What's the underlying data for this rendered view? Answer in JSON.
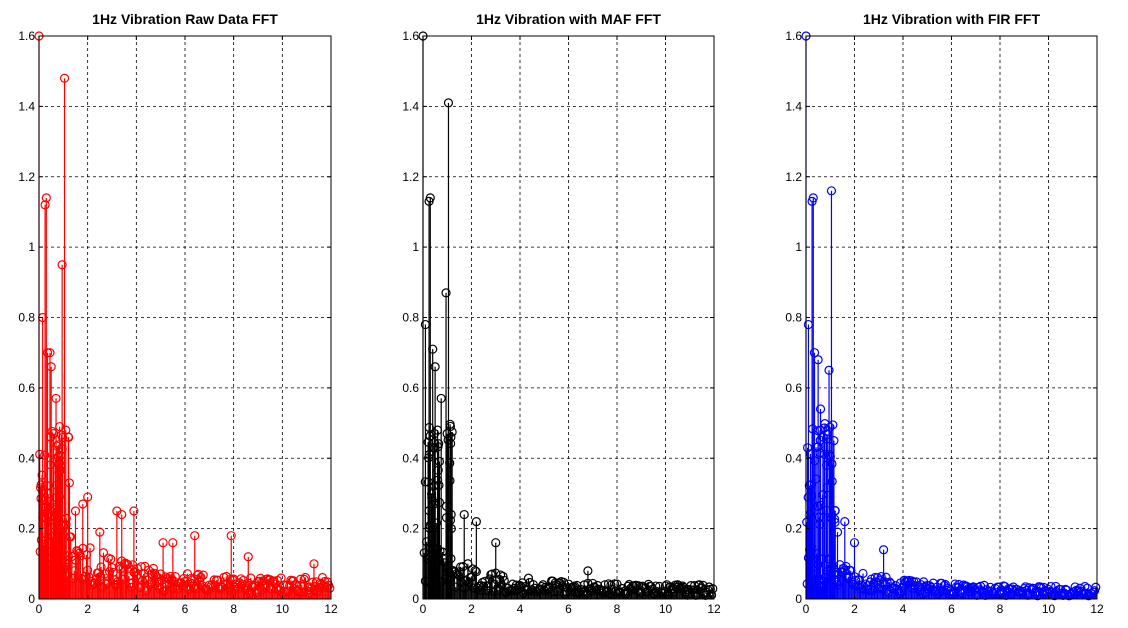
{
  "chart_data": [
    {
      "type": "stem",
      "title": "1Hz Vibration Raw Data FFT",
      "color": "#ff0000",
      "xlim": [
        0,
        12
      ],
      "ylim": [
        0,
        1.6
      ],
      "xticks": [
        0,
        2,
        4,
        6,
        8,
        10,
        12
      ],
      "yticks": [
        0,
        0.2,
        0.4,
        0.6,
        0.8,
        1,
        1.2,
        1.4,
        1.6
      ],
      "xtick_labels": [
        "0",
        "2",
        "4",
        "6",
        "8",
        "10",
        "12"
      ],
      "ytick_labels": [
        "0",
        "0.2",
        "0.4",
        "0.6",
        "0.8",
        "1",
        "1.2",
        "1.4",
        "1.6"
      ],
      "grid": true,
      "peaks": [
        {
          "x": 0.0,
          "y": 1.6
        },
        {
          "x": 0.15,
          "y": 0.8
        },
        {
          "x": 0.25,
          "y": 1.12
        },
        {
          "x": 0.3,
          "y": 1.14
        },
        {
          "x": 0.35,
          "y": 0.7
        },
        {
          "x": 0.45,
          "y": 0.7
        },
        {
          "x": 0.5,
          "y": 0.66
        },
        {
          "x": 0.6,
          "y": 0.47
        },
        {
          "x": 0.7,
          "y": 0.57
        },
        {
          "x": 0.85,
          "y": 0.49
        },
        {
          "x": 0.95,
          "y": 0.95
        },
        {
          "x": 1.05,
          "y": 1.48
        },
        {
          "x": 1.1,
          "y": 0.48
        },
        {
          "x": 1.25,
          "y": 0.33
        },
        {
          "x": 1.5,
          "y": 0.25
        },
        {
          "x": 1.8,
          "y": 0.27
        },
        {
          "x": 2.0,
          "y": 0.29
        },
        {
          "x": 2.5,
          "y": 0.19
        },
        {
          "x": 3.2,
          "y": 0.25
        },
        {
          "x": 3.4,
          "y": 0.24
        },
        {
          "x": 3.9,
          "y": 0.25
        },
        {
          "x": 5.1,
          "y": 0.16
        },
        {
          "x": 5.5,
          "y": 0.16
        },
        {
          "x": 6.4,
          "y": 0.18
        },
        {
          "x": 7.9,
          "y": 0.18
        },
        {
          "x": 8.6,
          "y": 0.12
        },
        {
          "x": 11.3,
          "y": 0.1
        }
      ],
      "floor_start": 0.3,
      "floor_end": 0.06
    },
    {
      "type": "stem",
      "title": "1Hz Vibration with MAF FFT",
      "color": "#000000",
      "xlim": [
        0,
        12
      ],
      "ylim": [
        0,
        1.6
      ],
      "xticks": [
        0,
        2,
        4,
        6,
        8,
        10,
        12
      ],
      "yticks": [
        0,
        0.2,
        0.4,
        0.6,
        0.8,
        1,
        1.2,
        1.4,
        1.6
      ],
      "xtick_labels": [
        "0",
        "2",
        "4",
        "6",
        "8",
        "10",
        "12"
      ],
      "ytick_labels": [
        "0",
        "0.2",
        "0.4",
        "0.6",
        "0.8",
        "1",
        "1.2",
        "1.4",
        "1.6"
      ],
      "grid": true,
      "peaks": [
        {
          "x": 0.0,
          "y": 1.6
        },
        {
          "x": 0.1,
          "y": 0.78
        },
        {
          "x": 0.25,
          "y": 1.13
        },
        {
          "x": 0.3,
          "y": 1.14
        },
        {
          "x": 0.4,
          "y": 0.71
        },
        {
          "x": 0.5,
          "y": 0.66
        },
        {
          "x": 0.6,
          "y": 0.48
        },
        {
          "x": 0.75,
          "y": 0.57
        },
        {
          "x": 0.95,
          "y": 0.87
        },
        {
          "x": 1.05,
          "y": 1.41
        },
        {
          "x": 1.15,
          "y": 0.46
        },
        {
          "x": 1.7,
          "y": 0.24
        },
        {
          "x": 2.2,
          "y": 0.22
        },
        {
          "x": 3.0,
          "y": 0.16
        },
        {
          "x": 6.8,
          "y": 0.08
        }
      ],
      "floor_start": 0.18,
      "floor_end": 0.04
    },
    {
      "type": "stem",
      "title": "1Hz Vibration with FIR FFT",
      "color": "#0000ff",
      "xlim": [
        0,
        12
      ],
      "ylim": [
        0,
        1.6
      ],
      "xticks": [
        0,
        2,
        4,
        6,
        8,
        10,
        12
      ],
      "yticks": [
        0,
        0.2,
        0.4,
        0.6,
        0.8,
        1,
        1.2,
        1.4,
        1.6
      ],
      "xtick_labels": [
        "0",
        "2",
        "4",
        "6",
        "8",
        "10",
        "12"
      ],
      "ytick_labels": [
        "0",
        "0.2",
        "0.4",
        "0.6",
        "0.8",
        "1",
        "1.2",
        "1.4",
        "1.6"
      ],
      "grid": true,
      "peaks": [
        {
          "x": 0.0,
          "y": 1.6
        },
        {
          "x": 0.1,
          "y": 0.78
        },
        {
          "x": 0.25,
          "y": 1.13
        },
        {
          "x": 0.3,
          "y": 1.14
        },
        {
          "x": 0.35,
          "y": 0.7
        },
        {
          "x": 0.5,
          "y": 0.68
        },
        {
          "x": 0.6,
          "y": 0.54
        },
        {
          "x": 0.7,
          "y": 0.46
        },
        {
          "x": 0.85,
          "y": 0.38
        },
        {
          "x": 0.95,
          "y": 0.65
        },
        {
          "x": 1.05,
          "y": 1.16
        },
        {
          "x": 1.15,
          "y": 0.45
        },
        {
          "x": 1.3,
          "y": 0.19
        },
        {
          "x": 1.6,
          "y": 0.22
        },
        {
          "x": 2.0,
          "y": 0.16
        },
        {
          "x": 3.2,
          "y": 0.14
        }
      ],
      "floor_start": 0.16,
      "floor_end": 0.035
    }
  ]
}
